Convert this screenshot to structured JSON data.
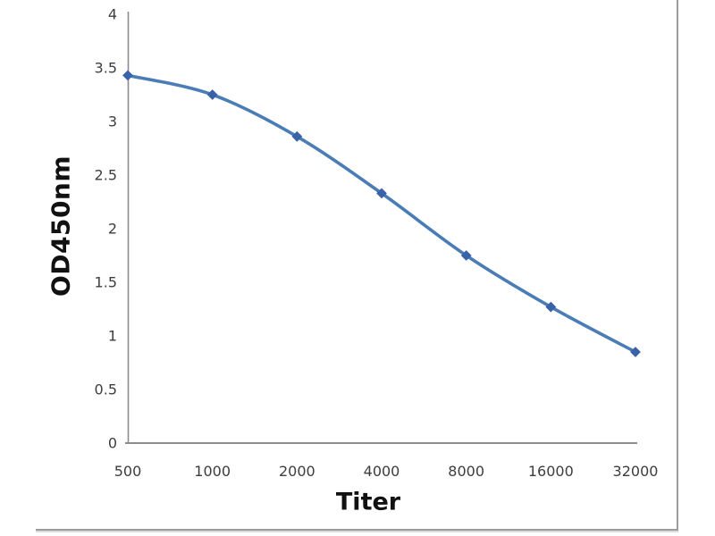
{
  "chart_data": {
    "type": "line",
    "title": "",
    "xlabel": "Titer",
    "ylabel": "OD450nm",
    "categories": [
      500,
      1000,
      2000,
      4000,
      8000,
      16000,
      32000
    ],
    "x_tick_labels": [
      "500",
      "1000",
      "2000",
      "4000",
      "8000",
      "16000",
      "32000"
    ],
    "series": [
      {
        "name": "OD450nm",
        "values": [
          3.43,
          3.25,
          2.86,
          2.33,
          1.75,
          1.27,
          0.85
        ]
      }
    ],
    "ylim": [
      0,
      4
    ],
    "y_ticks": [
      0,
      0.5,
      1,
      1.5,
      2,
      2.5,
      3,
      3.5,
      4
    ],
    "grid": false,
    "legend_visible": false,
    "line_smooth": true,
    "marker_shape": "diamond",
    "colors": {
      "line": "#4a7cb5",
      "marker": "#3a62a8",
      "axis_line": "#8c8c8c",
      "tick_text": "#3d3d3d",
      "axis_title_text": "#111111",
      "image_border": "#9c9c9c",
      "background": "#ffffff"
    }
  }
}
